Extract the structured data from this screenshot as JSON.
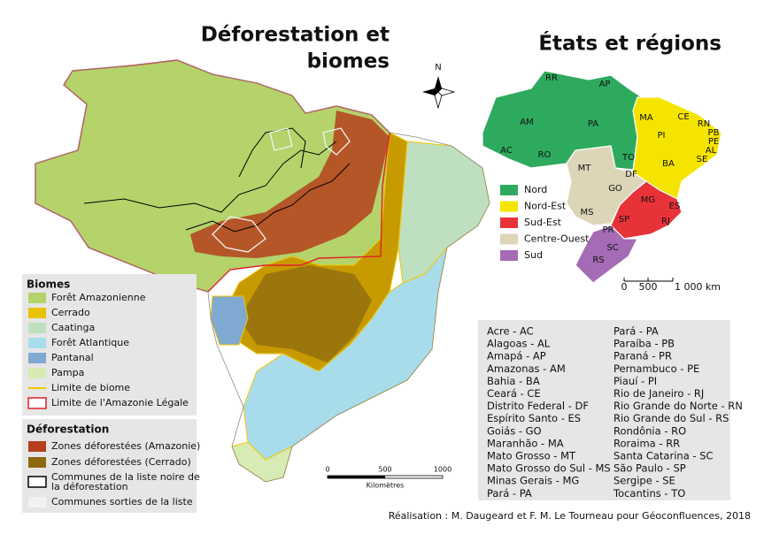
{
  "title_lines": [
    "Déforestation et",
    "biomes"
  ],
  "regions_title": "États et régions",
  "compass": "N",
  "biomes_legend": {
    "title": "Biomes",
    "items": [
      {
        "label": "Forêt Amazonienne",
        "color": "#b4d36b",
        "symbol": "fill"
      },
      {
        "label": "Cerrado",
        "color": "#e8c200",
        "symbol": "fill"
      },
      {
        "label": "Caatinga",
        "color": "#bfe0c0",
        "symbol": "fill"
      },
      {
        "label": "Forêt Atlantique",
        "color": "#a8dcea",
        "symbol": "fill"
      },
      {
        "label": "Pantanal",
        "color": "#7fa9d0",
        "symbol": "fill"
      },
      {
        "label": "Pampa",
        "color": "#d7ebb4",
        "symbol": "fill"
      },
      {
        "label": "Limite de biome",
        "color": "#f2c600",
        "symbol": "line"
      },
      {
        "label": "Limite de l'Amazonie Légale",
        "color": "#e0202a",
        "symbol": "outline"
      }
    ]
  },
  "deforestation_legend": {
    "title": "Déforestation",
    "items": [
      {
        "lines": [
          "Zones déforestées (Amazonie)"
        ],
        "color": "#b5401c",
        "symbol": "fill"
      },
      {
        "lines": [
          "Zones déforestées (Cerrado)"
        ],
        "color": "#8c6a10",
        "symbol": "fill"
      },
      {
        "lines": [
          "Communes de la liste noire de",
          "la déforestation"
        ],
        "color": "#000000",
        "symbol": "outline"
      },
      {
        "lines": [
          "Communes sorties de la liste"
        ],
        "color": "#f2f2f2",
        "symbol": "fill"
      }
    ]
  },
  "regions_legend": [
    {
      "label": "Nord",
      "color": "#2eaa5e"
    },
    {
      "label": "Nord-Est",
      "color": "#f5e400"
    },
    {
      "label": "Sud-Est",
      "color": "#e8323a"
    },
    {
      "label": "Centre-Ouest",
      "color": "#ddd5b8"
    },
    {
      "label": "Sud",
      "color": "#a56bb5"
    }
  ],
  "state_labels": [
    "RR",
    "AP",
    "AM",
    "PA",
    "AC",
    "RO",
    "MT",
    "TO",
    "MA",
    "PI",
    "CE",
    "RN",
    "PB",
    "PE",
    "AL",
    "SE",
    "BA",
    "GO",
    "DF",
    "MG",
    "ES",
    "SP",
    "RJ",
    "MS",
    "PR",
    "SC",
    "RS"
  ],
  "small_scale": [
    "0",
    "500",
    "1 000 km"
  ],
  "main_scale": {
    "ticks": [
      "0",
      "500",
      "1000"
    ],
    "unit": "Kilomètres"
  },
  "state_list": [
    [
      "Acre - AC",
      "Alagoas - AL",
      "Amapá - AP",
      "Amazonas - AM",
      "Bahia  - BA",
      "Ceará - CE",
      "Distrito Federal  - DF",
      "Espírito Santo - ES",
      "Goiás - GO",
      "Maranhão - MA",
      "Mato Grosso - MT",
      "Mato Grosso do Sul - MS",
      "Minas Gerais - MG",
      "Pará - PA"
    ],
    [
      "Pará - PA",
      "Paraíba - PB",
      "Paraná - PR",
      "Pernambuco - PE",
      "Piauí - PI",
      "Rio de Janeiro - RJ",
      "Rio Grande do Norte - RN",
      "Rio Grande do Sul - RS",
      "Rondônia - RO",
      "Roraima - RR",
      "Santa Catarina - SC",
      "São Paulo - SP",
      "Sergipe - SE",
      "Tocantins - TO"
    ]
  ],
  "credit": "Réalisation : M. Daugeard et F. M. Le Tourneau pour Géoconfluences, 2018"
}
